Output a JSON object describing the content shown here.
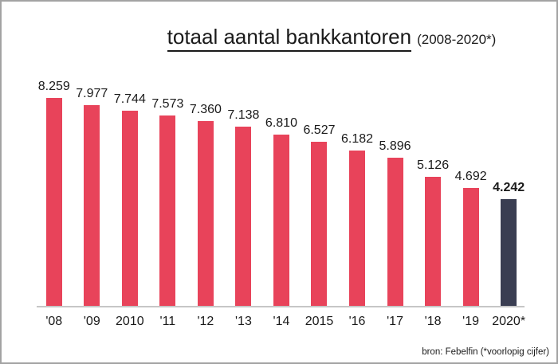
{
  "title": {
    "main": "totaal aantal bankkantoren",
    "suffix": "(2008-2020*)"
  },
  "source_note": "bron: Febelfin (*voorlopig cijfer)",
  "colors": {
    "bar": "#e8435a",
    "bar_final": "#3a3e52",
    "axis": "#c6c6c6",
    "frame_border": "#a3a3a3",
    "text": "#1a1a1a"
  },
  "chart_data": {
    "type": "bar",
    "title": "totaal aantal bankkantoren (2008-2020*)",
    "xlabel": "",
    "ylabel": "",
    "categories": [
      "'08",
      "'09",
      "2010",
      "'11",
      "'12",
      "'13",
      "'14",
      "2015",
      "'16",
      "'17",
      "'18",
      "'19",
      "2020*"
    ],
    "values": [
      8259,
      7977,
      7744,
      7573,
      7360,
      7138,
      6810,
      6527,
      6182,
      5896,
      5126,
      4692,
      4242
    ],
    "value_labels": [
      "8.259",
      "7.977",
      "7.744",
      "7.573",
      "7.360",
      "7.138",
      "6.810",
      "6.527",
      "6.182",
      "5.896",
      "5.126",
      "4.692",
      "4.242"
    ],
    "highlight_index": 12,
    "ylim": [
      0,
      8259
    ],
    "grid": false,
    "legend": "none",
    "source": "bron: Febelfin (*voorlopig cijfer)"
  }
}
